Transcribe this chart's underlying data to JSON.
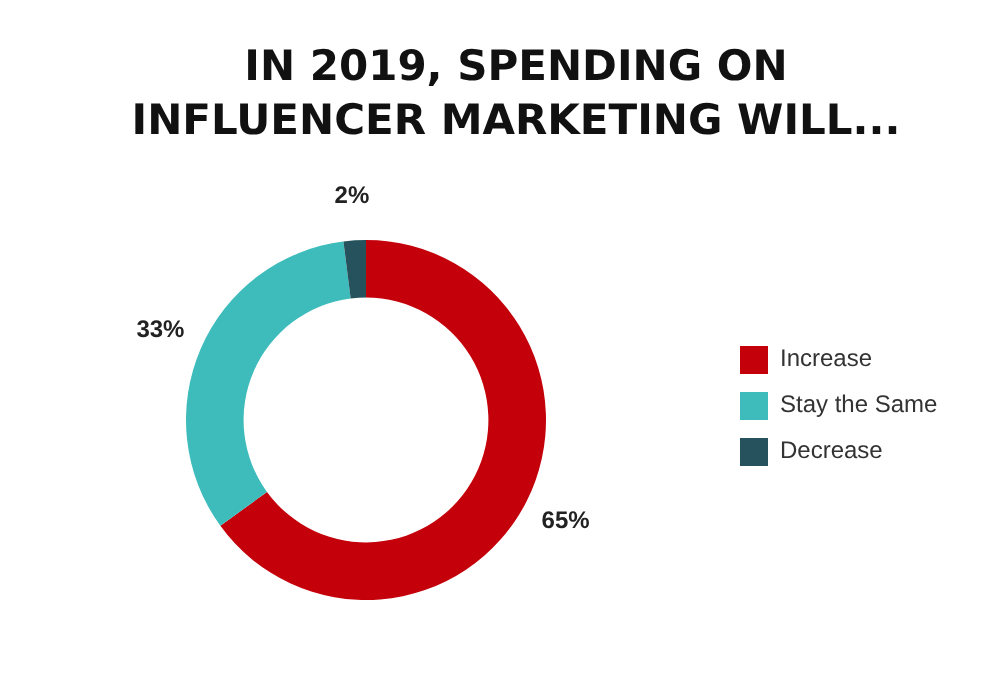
{
  "chart_data": {
    "type": "donut",
    "title": "IN 2019, SPENDING ON\nINFLUENCER MARKETING WILL...",
    "categories": [
      "Increase",
      "Stay the Same",
      "Decrease"
    ],
    "values": [
      65,
      33,
      2
    ],
    "value_labels": [
      "65%",
      "33%",
      "2%"
    ],
    "colors": [
      "#c4000b",
      "#3dbcbb",
      "#25525c"
    ],
    "legend": "right"
  }
}
